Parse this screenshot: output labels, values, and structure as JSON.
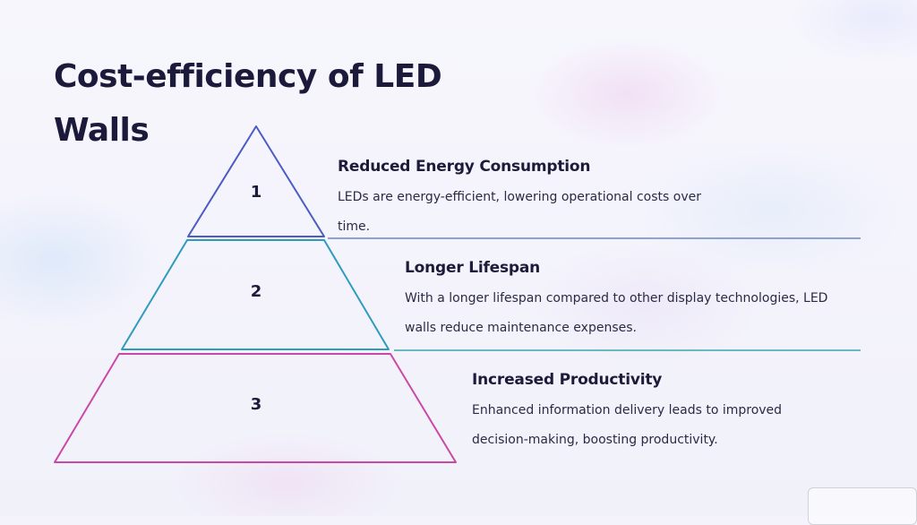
{
  "title": "Cost-efficiency of LED Walls",
  "levels": [
    {
      "number": "1",
      "heading": "Reduced Energy Consumption",
      "description": "LEDs are energy-efficient, lowering operational costs over time.",
      "color": "#4b5cc4"
    },
    {
      "number": "2",
      "heading": "Longer Lifespan",
      "description": "With a longer lifespan compared to other display technologies, LED walls reduce maintenance expenses.",
      "color": "#2f9bbf"
    },
    {
      "number": "3",
      "heading": "Increased Productivity",
      "description": "Enhanced information delivery leads to improved decision-making, boosting productivity.",
      "color": "#c94aa6"
    }
  ]
}
